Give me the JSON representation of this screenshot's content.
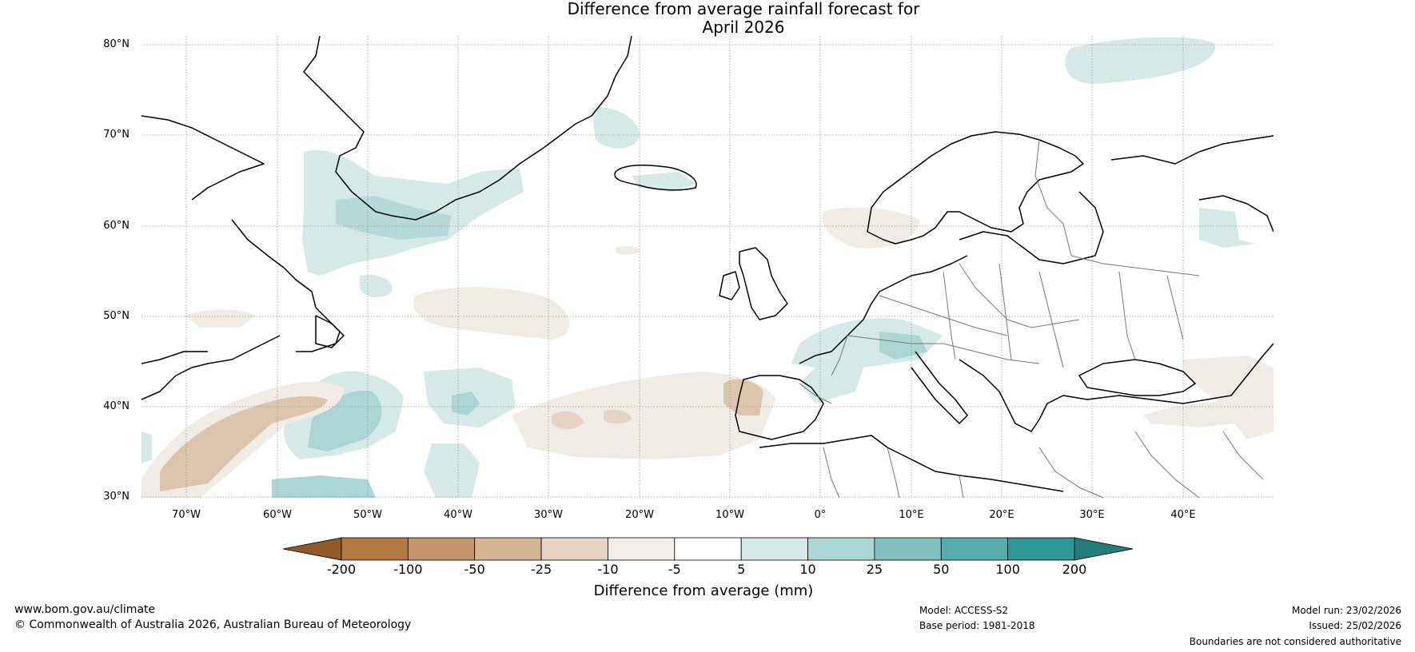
{
  "title": {
    "line1": "Difference from average rainfall forecast for",
    "line2": "April 2026"
  },
  "map": {
    "lat_labels": [
      "80°N",
      "70°N",
      "60°N",
      "50°N",
      "40°N",
      "30°N"
    ],
    "lon_labels": [
      "70°W",
      "60°W",
      "50°W",
      "40°W",
      "30°W",
      "20°W",
      "10°W",
      "0°",
      "10°E",
      "20°E",
      "30°E",
      "40°E"
    ],
    "region": "North Atlantic and Europe",
    "colors": {
      "dry_strong": "#8e5a2a",
      "dry_light": "#f0ebe4",
      "wet_light": "#d5e9e8",
      "wet_medium": "#a9d4d3",
      "coast": "#000000",
      "borders": "#777777",
      "grid": "#999999"
    }
  },
  "legend": {
    "ticks": [
      "-200",
      "-100",
      "-50",
      "-25",
      "-10",
      "-5",
      "5",
      "10",
      "25",
      "50",
      "100",
      "200"
    ],
    "colors": [
      "#8e5a2a",
      "#b37940",
      "#c4956a",
      "#d5b496",
      "#e6d3c3",
      "#f3eee8",
      "#ffffff",
      "#d5e9e8",
      "#abd6d5",
      "#81c1c0",
      "#57acab",
      "#2e9896",
      "#237b7a"
    ],
    "label": "Difference from average (mm)"
  },
  "footer": {
    "website": "www.bom.gov.au/climate",
    "copyright": "© Commonwealth of Australia 2026, Australian Bureau of Meteorology",
    "model": "Model: ACCESS-S2",
    "base_period": "Base period: 1981-2018",
    "model_run": "Model run: 23/02/2026",
    "issued": "Issued: 25/02/2026",
    "disclaimer": "Boundaries are not considered authoritative"
  }
}
